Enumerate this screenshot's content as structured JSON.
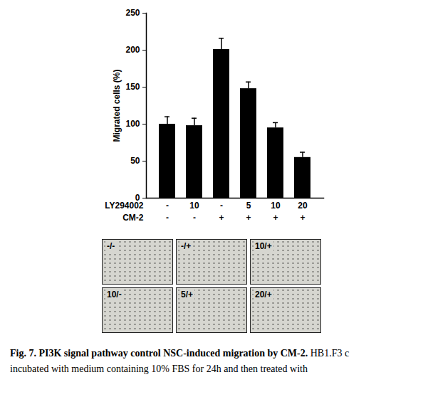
{
  "chart_data": {
    "type": "bar",
    "category_rows": [
      {
        "name": "LY294002",
        "labels": [
          "-",
          "10",
          "-",
          "5",
          "10",
          "20"
        ]
      },
      {
        "name": "CM-2",
        "labels": [
          "-",
          "-",
          "+",
          "+",
          "+",
          "+"
        ]
      }
    ],
    "values": [
      100,
      98,
      201,
      148,
      95,
      55
    ],
    "errors": [
      10,
      10,
      15,
      9,
      7,
      7
    ],
    "color": "#000000",
    "ylabel": "Migrated cells (%)",
    "ylim": [
      0,
      250
    ],
    "yticks": [
      0,
      50,
      100,
      150,
      200,
      250
    ],
    "grid": false
  },
  "panels": {
    "labels": [
      "-/-",
      "-/+",
      "10/+",
      "10/-",
      "5/+",
      "20/+"
    ]
  },
  "caption": {
    "title": "Fig. 7. PI3K signal pathway control NSC-induced migration by CM-2.",
    "text": "HB1.F3 c",
    "line2": "incubated with medium containing 10% FBS for 24h and then treated with"
  }
}
